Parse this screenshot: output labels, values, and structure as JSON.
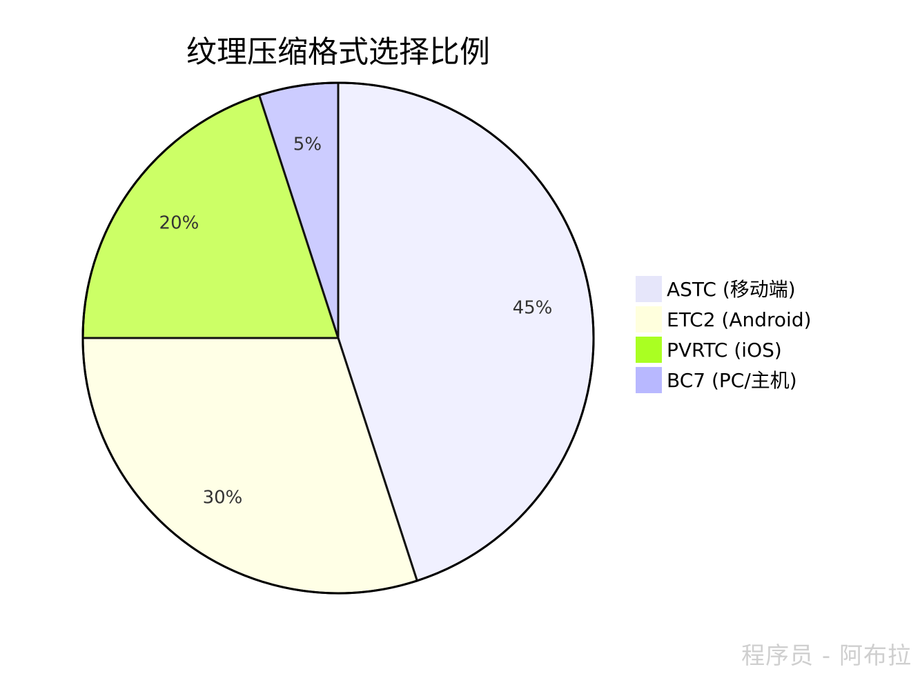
{
  "chart_data": {
    "type": "pie",
    "title": "纹理压缩格式选择比例",
    "slices": [
      {
        "name": "ASTC (移动端)",
        "value": 45,
        "label": "45%",
        "color": "#f0f0ff"
      },
      {
        "name": "ETC2 (Android)",
        "value": 30,
        "label": "30%",
        "color": "#ffffe6"
      },
      {
        "name": "PVRTC (iOS)",
        "value": 20,
        "label": "20%",
        "color": "#ccff66"
      },
      {
        "name": "BC7 (PC/主机)",
        "value": 5,
        "label": "5%",
        "color": "#ccccff"
      }
    ],
    "legend": {
      "placement": "right",
      "swatch_colors": [
        "#e6e6fa",
        "#ffffdd",
        "#aaff22",
        "#b8b8ff"
      ]
    }
  },
  "watermark": "程序员 - 阿布拉"
}
